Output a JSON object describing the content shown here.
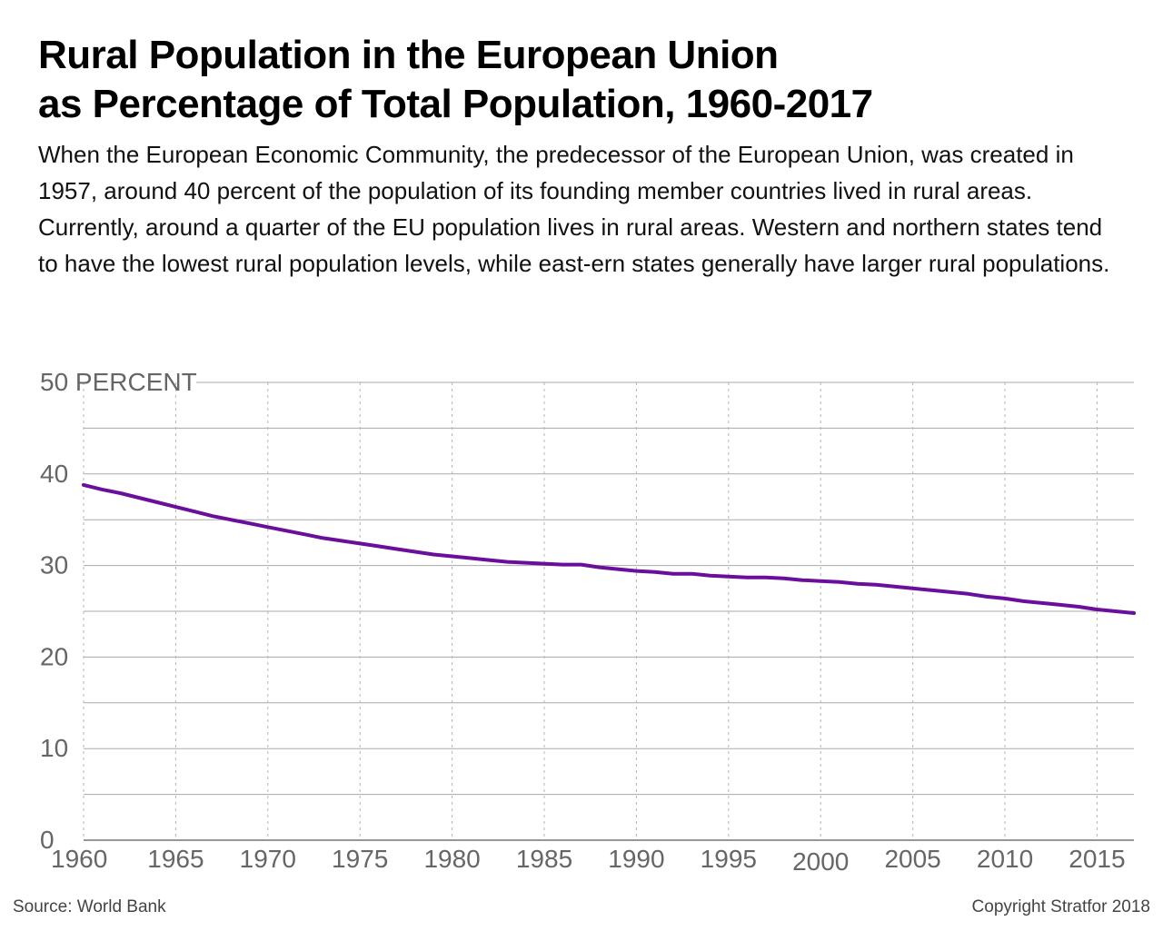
{
  "header": {
    "title_line1": "Rural Population in the European Union",
    "title_line2": "as Percentage of Total Population, 1960-2017",
    "subtitle": "When the European Economic Community, the predecessor of the European Union, was created in 1957, around 40 percent of the population of its founding member countries lived in rural areas. Currently, around a quarter of the EU population lives in rural areas. Western and northern states tend to have the lowest rural population levels, while east-ern states generally have larger rural populations."
  },
  "footer": {
    "source": "Source: World Bank",
    "copyright": "Copyright Stratfor 2018"
  },
  "colors": {
    "line": "#6a0f9c",
    "grid": "#aaaaaa",
    "axis_text": "#666666"
  },
  "chart_data": {
    "type": "line",
    "title": "Rural Population in the European Union as Percentage of Total Population, 1960-2017",
    "xlabel": "",
    "ylabel": "PERCENT",
    "xlim": [
      1960,
      2017
    ],
    "ylim": [
      0,
      50
    ],
    "y_ticks": [
      0,
      10,
      20,
      30,
      40,
      50
    ],
    "y_tick_labels": [
      "0",
      "10",
      "20",
      "30",
      "40",
      "50 PERCENT"
    ],
    "x_ticks": [
      1960,
      1965,
      1970,
      1975,
      1980,
      1985,
      1990,
      1995,
      2000,
      2005,
      2010,
      2015
    ],
    "x_tick_labels": [
      "1960",
      "1965",
      "1970",
      "1975",
      "1980",
      "1985",
      "1990",
      "1995",
      "2000",
      "2005",
      "2010",
      "2015"
    ],
    "grid": true,
    "series": [
      {
        "x": [
          1960,
          1961,
          1962,
          1963,
          1964,
          1965,
          1966,
          1967,
          1968,
          1969,
          1970,
          1971,
          1972,
          1973,
          1974,
          1975,
          1976,
          1977,
          1978,
          1979,
          1980,
          1981,
          1982,
          1983,
          1984,
          1985,
          1986,
          1987,
          1988,
          1989,
          1990,
          1991,
          1992,
          1993,
          1994,
          1995,
          1996,
          1997,
          1998,
          1999,
          2000,
          2001,
          2002,
          2003,
          2004,
          2005,
          2006,
          2007,
          2008,
          2009,
          2010,
          2011,
          2012,
          2013,
          2014,
          2015,
          2016,
          2017
        ],
        "values": [
          38.8,
          38.3,
          37.9,
          37.4,
          36.9,
          36.4,
          35.9,
          35.4,
          35.0,
          34.6,
          34.2,
          33.8,
          33.4,
          33.0,
          32.7,
          32.4,
          32.1,
          31.8,
          31.5,
          31.2,
          31.0,
          30.8,
          30.6,
          30.4,
          30.3,
          30.2,
          30.1,
          30.1,
          29.8,
          29.6,
          29.4,
          29.3,
          29.1,
          29.1,
          28.9,
          28.8,
          28.7,
          28.7,
          28.6,
          28.4,
          28.3,
          28.2,
          28.0,
          27.9,
          27.7,
          27.5,
          27.3,
          27.1,
          26.9,
          26.6,
          26.4,
          26.1,
          25.9,
          25.7,
          25.5,
          25.2,
          25.0,
          24.8
        ]
      }
    ]
  }
}
